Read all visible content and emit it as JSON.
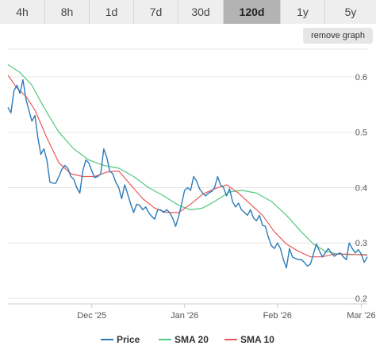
{
  "timeframes": [
    {
      "label": "4h",
      "active": false
    },
    {
      "label": "8h",
      "active": false
    },
    {
      "label": "1d",
      "active": false
    },
    {
      "label": "7d",
      "active": false
    },
    {
      "label": "30d",
      "active": false
    },
    {
      "label": "120d",
      "active": true
    },
    {
      "label": "1y",
      "active": false
    },
    {
      "label": "5y",
      "active": false
    }
  ],
  "remove_graph_label": "remove graph",
  "chart_data": {
    "type": "line",
    "xlabel": "",
    "ylabel": "",
    "x_start": "2025-11-03",
    "x_end": "2026-03-03",
    "x_ticks": [
      {
        "label": "Dec '25",
        "date": "2025-12-01"
      },
      {
        "label": "Jan '26",
        "date": "2026-01-01"
      },
      {
        "label": "Feb '26",
        "date": "2026-02-01"
      },
      {
        "label": "Mar '26",
        "date": "2026-03-01"
      }
    ],
    "y_ticks": [
      0.2,
      0.3,
      0.4,
      0.5,
      0.6
    ],
    "ylim": [
      0.19,
      0.65
    ],
    "grid": true,
    "legend_position": "bottom",
    "series": [
      {
        "name": "Price",
        "color": "#2b7bb9",
        "points": [
          [
            "2025-11-03",
            0.545
          ],
          [
            "2025-11-04",
            0.535
          ],
          [
            "2025-11-05",
            0.575
          ],
          [
            "2025-11-06",
            0.585
          ],
          [
            "2025-11-07",
            0.57
          ],
          [
            "2025-11-08",
            0.595
          ],
          [
            "2025-11-09",
            0.56
          ],
          [
            "2025-11-10",
            0.54
          ],
          [
            "2025-11-11",
            0.52
          ],
          [
            "2025-11-12",
            0.53
          ],
          [
            "2025-11-13",
            0.49
          ],
          [
            "2025-11-14",
            0.46
          ],
          [
            "2025-11-15",
            0.47
          ],
          [
            "2025-11-16",
            0.45
          ],
          [
            "2025-11-17",
            0.41
          ],
          [
            "2025-11-18",
            0.408
          ],
          [
            "2025-11-19",
            0.408
          ],
          [
            "2025-11-20",
            0.42
          ],
          [
            "2025-11-21",
            0.433
          ],
          [
            "2025-11-22",
            0.44
          ],
          [
            "2025-11-23",
            0.435
          ],
          [
            "2025-11-24",
            0.42
          ],
          [
            "2025-11-25",
            0.415
          ],
          [
            "2025-11-26",
            0.4
          ],
          [
            "2025-11-27",
            0.39
          ],
          [
            "2025-11-28",
            0.43
          ],
          [
            "2025-11-29",
            0.45
          ],
          [
            "2025-11-30",
            0.445
          ],
          [
            "2025-12-01",
            0.43
          ],
          [
            "2025-12-02",
            0.418
          ],
          [
            "2025-12-03",
            0.42
          ],
          [
            "2025-12-04",
            0.425
          ],
          [
            "2025-12-05",
            0.47
          ],
          [
            "2025-12-06",
            0.455
          ],
          [
            "2025-12-07",
            0.43
          ],
          [
            "2025-12-08",
            0.425
          ],
          [
            "2025-12-09",
            0.41
          ],
          [
            "2025-12-10",
            0.4
          ],
          [
            "2025-12-11",
            0.38
          ],
          [
            "2025-12-12",
            0.405
          ],
          [
            "2025-12-13",
            0.388
          ],
          [
            "2025-12-14",
            0.37
          ],
          [
            "2025-12-15",
            0.355
          ],
          [
            "2025-12-16",
            0.37
          ],
          [
            "2025-12-17",
            0.368
          ],
          [
            "2025-12-18",
            0.36
          ],
          [
            "2025-12-19",
            0.365
          ],
          [
            "2025-12-20",
            0.355
          ],
          [
            "2025-12-21",
            0.348
          ],
          [
            "2025-12-22",
            0.343
          ],
          [
            "2025-12-23",
            0.36
          ],
          [
            "2025-12-24",
            0.36
          ],
          [
            "2025-12-25",
            0.355
          ],
          [
            "2025-12-26",
            0.36
          ],
          [
            "2025-12-27",
            0.355
          ],
          [
            "2025-12-28",
            0.345
          ],
          [
            "2025-12-29",
            0.33
          ],
          [
            "2025-12-30",
            0.348
          ],
          [
            "2025-12-31",
            0.37
          ],
          [
            "2026-01-01",
            0.395
          ],
          [
            "2026-01-02",
            0.4
          ],
          [
            "2026-01-03",
            0.395
          ],
          [
            "2026-01-04",
            0.42
          ],
          [
            "2026-01-05",
            0.412
          ],
          [
            "2026-01-06",
            0.398
          ],
          [
            "2026-01-07",
            0.39
          ],
          [
            "2026-01-08",
            0.385
          ],
          [
            "2026-01-09",
            0.39
          ],
          [
            "2026-01-10",
            0.393
          ],
          [
            "2026-01-11",
            0.4
          ],
          [
            "2026-01-12",
            0.42
          ],
          [
            "2026-01-13",
            0.405
          ],
          [
            "2026-01-14",
            0.4
          ],
          [
            "2026-01-15",
            0.385
          ],
          [
            "2026-01-16",
            0.398
          ],
          [
            "2026-01-17",
            0.375
          ],
          [
            "2026-01-18",
            0.365
          ],
          [
            "2026-01-19",
            0.372
          ],
          [
            "2026-01-20",
            0.36
          ],
          [
            "2026-01-21",
            0.355
          ],
          [
            "2026-01-22",
            0.35
          ],
          [
            "2026-01-23",
            0.36
          ],
          [
            "2026-01-24",
            0.345
          ],
          [
            "2026-01-25",
            0.34
          ],
          [
            "2026-01-26",
            0.35
          ],
          [
            "2026-01-27",
            0.332
          ],
          [
            "2026-01-28",
            0.33
          ],
          [
            "2026-01-29",
            0.31
          ],
          [
            "2026-01-30",
            0.295
          ],
          [
            "2026-01-31",
            0.29
          ],
          [
            "2026-02-01",
            0.3
          ],
          [
            "2026-02-02",
            0.29
          ],
          [
            "2026-02-03",
            0.27
          ],
          [
            "2026-02-04",
            0.255
          ],
          [
            "2026-02-05",
            0.29
          ],
          [
            "2026-02-06",
            0.275
          ],
          [
            "2026-02-07",
            0.272
          ],
          [
            "2026-02-08",
            0.27
          ],
          [
            "2026-02-09",
            0.27
          ],
          [
            "2026-02-10",
            0.265
          ],
          [
            "2026-02-11",
            0.258
          ],
          [
            "2026-02-12",
            0.262
          ],
          [
            "2026-02-13",
            0.28
          ],
          [
            "2026-02-14",
            0.298
          ],
          [
            "2026-02-15",
            0.286
          ],
          [
            "2026-02-16",
            0.275
          ],
          [
            "2026-02-17",
            0.282
          ],
          [
            "2026-02-18",
            0.29
          ],
          [
            "2026-02-19",
            0.282
          ],
          [
            "2026-02-20",
            0.276
          ],
          [
            "2026-02-21",
            0.28
          ],
          [
            "2026-02-22",
            0.282
          ],
          [
            "2026-02-23",
            0.275
          ],
          [
            "2026-02-24",
            0.27
          ],
          [
            "2026-02-25",
            0.3
          ],
          [
            "2026-02-26",
            0.29
          ],
          [
            "2026-02-27",
            0.282
          ],
          [
            "2026-02-28",
            0.288
          ],
          [
            "2026-03-01",
            0.28
          ],
          [
            "2026-03-02",
            0.265
          ],
          [
            "2026-03-03",
            0.275
          ]
        ]
      },
      {
        "name": "SMA 20",
        "color": "#52c97e",
        "points": [
          [
            "2025-11-03",
            0.622
          ],
          [
            "2025-11-07",
            0.608
          ],
          [
            "2025-11-11",
            0.585
          ],
          [
            "2025-11-15",
            0.545
          ],
          [
            "2025-11-20",
            0.5
          ],
          [
            "2025-11-25",
            0.47
          ],
          [
            "2025-11-30",
            0.45
          ],
          [
            "2025-12-05",
            0.44
          ],
          [
            "2025-12-10",
            0.435
          ],
          [
            "2025-12-15",
            0.42
          ],
          [
            "2025-12-20",
            0.4
          ],
          [
            "2025-12-25",
            0.385
          ],
          [
            "2025-12-30",
            0.368
          ],
          [
            "2026-01-03",
            0.36
          ],
          [
            "2026-01-07",
            0.363
          ],
          [
            "2026-01-11",
            0.375
          ],
          [
            "2026-01-16",
            0.392
          ],
          [
            "2026-01-20",
            0.395
          ],
          [
            "2026-01-25",
            0.39
          ],
          [
            "2026-01-30",
            0.375
          ],
          [
            "2026-02-04",
            0.35
          ],
          [
            "2026-02-09",
            0.32
          ],
          [
            "2026-02-13",
            0.298
          ],
          [
            "2026-02-17",
            0.285
          ],
          [
            "2026-02-21",
            0.28
          ],
          [
            "2026-02-25",
            0.279
          ],
          [
            "2026-03-03",
            0.279
          ]
        ]
      },
      {
        "name": "SMA 10",
        "color": "#e8595b",
        "points": [
          [
            "2025-11-03",
            0.603
          ],
          [
            "2025-11-06",
            0.58
          ],
          [
            "2025-11-09",
            0.565
          ],
          [
            "2025-11-12",
            0.54
          ],
          [
            "2025-11-16",
            0.49
          ],
          [
            "2025-11-20",
            0.445
          ],
          [
            "2025-11-24",
            0.425
          ],
          [
            "2025-11-28",
            0.42
          ],
          [
            "2025-12-02",
            0.42
          ],
          [
            "2025-12-06",
            0.428
          ],
          [
            "2025-12-10",
            0.43
          ],
          [
            "2025-12-14",
            0.405
          ],
          [
            "2025-12-18",
            0.38
          ],
          [
            "2025-12-22",
            0.363
          ],
          [
            "2025-12-26",
            0.355
          ],
          [
            "2025-12-30",
            0.355
          ],
          [
            "2026-01-03",
            0.37
          ],
          [
            "2026-01-07",
            0.388
          ],
          [
            "2026-01-11",
            0.398
          ],
          [
            "2026-01-15",
            0.405
          ],
          [
            "2026-01-19",
            0.39
          ],
          [
            "2026-01-23",
            0.37
          ],
          [
            "2026-01-27",
            0.35
          ],
          [
            "2026-01-31",
            0.32
          ],
          [
            "2026-02-04",
            0.298
          ],
          [
            "2026-02-08",
            0.285
          ],
          [
            "2026-02-12",
            0.275
          ],
          [
            "2026-02-16",
            0.275
          ],
          [
            "2026-02-20",
            0.28
          ],
          [
            "2026-02-24",
            0.28
          ],
          [
            "2026-03-03",
            0.278
          ]
        ]
      }
    ]
  }
}
